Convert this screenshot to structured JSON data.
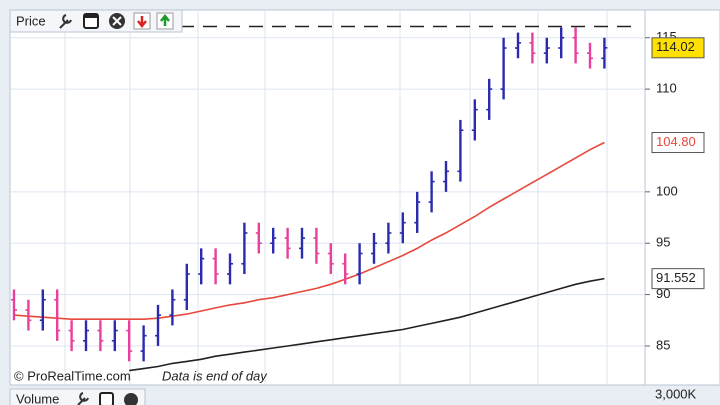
{
  "chart_data": {
    "type": "ohlc",
    "title": "Price",
    "ylim": [
      81.2,
      117.7
    ],
    "yticks": [
      85,
      90,
      95,
      100,
      110,
      115
    ],
    "grid": true,
    "ohlc": {
      "up_color": "#2b2bb0",
      "down_color": "#e8409c",
      "open": [
        89.5,
        88.5,
        87.5,
        89.5,
        86.5,
        85.5,
        86.5,
        85.5,
        86.5,
        84.5,
        86,
        88,
        89.5,
        92,
        93.5,
        92,
        93,
        96,
        95,
        95.5,
        94.5,
        95.5,
        94,
        93,
        92,
        94,
        95,
        96,
        97,
        99,
        101,
        102,
        106,
        108,
        110,
        114,
        114.5,
        113.5,
        114,
        115,
        113.5,
        113
      ],
      "high": [
        90.5,
        89.5,
        90.5,
        90.5,
        87.5,
        87.5,
        87.5,
        87.5,
        87.5,
        87,
        89,
        90.5,
        93,
        94.5,
        94.5,
        94,
        97,
        97,
        96.5,
        96.5,
        96.5,
        96.5,
        95,
        94,
        95,
        96,
        97,
        98,
        100,
        102,
        103,
        107,
        109,
        111,
        115,
        115.5,
        115.5,
        115,
        116,
        116,
        114.5,
        115
      ],
      "low": [
        87.5,
        86.5,
        86.5,
        85.5,
        84.5,
        84.5,
        84.5,
        84.5,
        83.5,
        83.5,
        85,
        87,
        88.5,
        91,
        91,
        91,
        92,
        94,
        94,
        93.5,
        93.5,
        93,
        92,
        91,
        91,
        93,
        94,
        95,
        96,
        98,
        100,
        101,
        105,
        107,
        109,
        113,
        112.5,
        112.5,
        113,
        112.5,
        112,
        112
      ],
      "close": [
        88.5,
        87.5,
        89.5,
        86.5,
        85.5,
        86.5,
        85.5,
        86.5,
        84.5,
        86,
        88,
        89.5,
        92,
        93.5,
        92,
        93,
        96,
        95,
        95.5,
        94.5,
        95.5,
        94,
        93,
        92,
        94,
        95,
        96,
        97,
        99,
        101,
        102,
        106,
        108,
        110,
        114,
        114.5,
        113.5,
        114,
        115,
        113.5,
        113,
        114.02
      ],
      "value_labels": [
        null,
        null,
        null,
        null,
        null,
        null,
        null,
        null,
        null,
        null,
        null,
        null,
        null,
        null,
        null,
        null,
        null,
        null,
        null,
        null,
        null,
        null,
        null,
        null,
        null,
        null,
        null,
        null,
        null,
        null,
        null,
        null,
        null,
        null,
        null,
        null,
        null,
        null,
        null,
        null,
        null,
        "114.02"
      ],
      "label_background": "#ffe000"
    },
    "series": [
      {
        "color": "#e8483c",
        "values": [
          88.0,
          87.9,
          87.8,
          87.7,
          87.6,
          87.6,
          87.6,
          87.6,
          87.6,
          87.6,
          87.7,
          87.9,
          88.1,
          88.4,
          88.7,
          89.0,
          89.2,
          89.5,
          89.7,
          90.0,
          90.3,
          90.6,
          91.0,
          91.5,
          92.0,
          92.6,
          93.2,
          93.8,
          94.5,
          95.3,
          96.0,
          96.8,
          97.6,
          98.5,
          99.3,
          100.1,
          100.9,
          101.7,
          102.5,
          103.3,
          104.1,
          104.8
        ],
        "value_labels": [
          null,
          null,
          null,
          null,
          null,
          null,
          null,
          null,
          null,
          null,
          null,
          null,
          null,
          null,
          null,
          null,
          null,
          null,
          null,
          null,
          null,
          null,
          null,
          null,
          null,
          null,
          null,
          null,
          null,
          null,
          null,
          null,
          null,
          null,
          null,
          null,
          null,
          null,
          null,
          null,
          null,
          "104.80"
        ]
      },
      {
        "color": "#222222",
        "values": [
          null,
          null,
          null,
          null,
          null,
          null,
          null,
          null,
          82.6,
          82.8,
          83.0,
          83.3,
          83.5,
          83.7,
          84.0,
          84.2,
          84.4,
          84.6,
          84.8,
          85.0,
          85.2,
          85.4,
          85.6,
          85.8,
          86.0,
          86.2,
          86.4,
          86.6,
          86.9,
          87.2,
          87.5,
          87.8,
          88.2,
          88.6,
          89.0,
          89.4,
          89.8,
          90.2,
          90.6,
          91.0,
          91.3,
          91.552
        ],
        "value_labels": [
          null,
          null,
          null,
          null,
          null,
          null,
          null,
          null,
          null,
          null,
          null,
          null,
          null,
          null,
          null,
          null,
          null,
          null,
          null,
          null,
          null,
          null,
          null,
          null,
          null,
          null,
          null,
          null,
          null,
          null,
          null,
          null,
          null,
          null,
          null,
          null,
          null,
          null,
          null,
          null,
          null,
          "91.552"
        ]
      }
    ],
    "reference_line": {
      "value": 116.1,
      "dashed": true,
      "color": "#222222"
    },
    "annotations": [
      "© ProRealTime.com",
      "Data is end of day"
    ],
    "volume_panel": {
      "title": "Volume",
      "yticks": [
        {
          "value": 3000000,
          "label": "3,000K"
        }
      ]
    }
  }
}
